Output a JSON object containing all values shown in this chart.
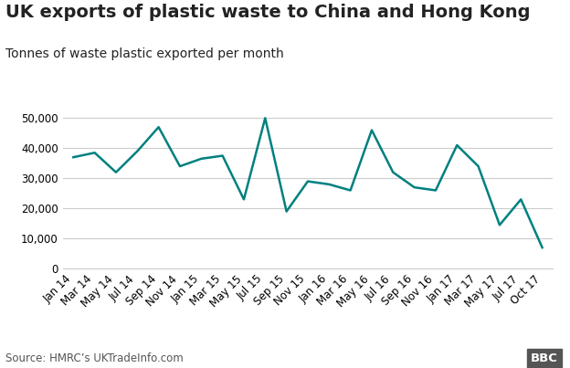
{
  "title": "UK exports of plastic waste to China and Hong Kong",
  "subtitle": "Tonnes of waste plastic exported per month",
  "source": "Source: HMRC’s UKTradeInfo.com",
  "line_color": "#008080",
  "background_color": "#ffffff",
  "grid_color": "#cccccc",
  "x_labels": [
    "Jan 14",
    "Mar 14",
    "May 14",
    "Jul 14",
    "Sep 14",
    "Nov 14",
    "Jan 15",
    "Mar 15",
    "May 15",
    "Jul 15",
    "Sep 15",
    "Nov 15",
    "Jan 16",
    "Mar 16",
    "May 16",
    "Jul 16",
    "Sep 16",
    "Nov 16",
    "Jan 17",
    "Mar 17",
    "May 17",
    "Jul 17",
    "Oct 17"
  ],
  "y_data": [
    37000,
    38500,
    32000,
    39000,
    47000,
    34000,
    36500,
    37500,
    23000,
    50000,
    19000,
    29000,
    28000,
    26000,
    46000,
    32000,
    27000,
    26000,
    41000,
    34000,
    14500,
    23000,
    7000
  ],
  "ylim": [
    0,
    55000
  ],
  "yticks": [
    0,
    10000,
    20000,
    30000,
    40000,
    50000
  ],
  "title_fontsize": 14,
  "subtitle_fontsize": 10,
  "tick_fontsize": 8.5,
  "source_fontsize": 8.5,
  "line_width": 1.8
}
